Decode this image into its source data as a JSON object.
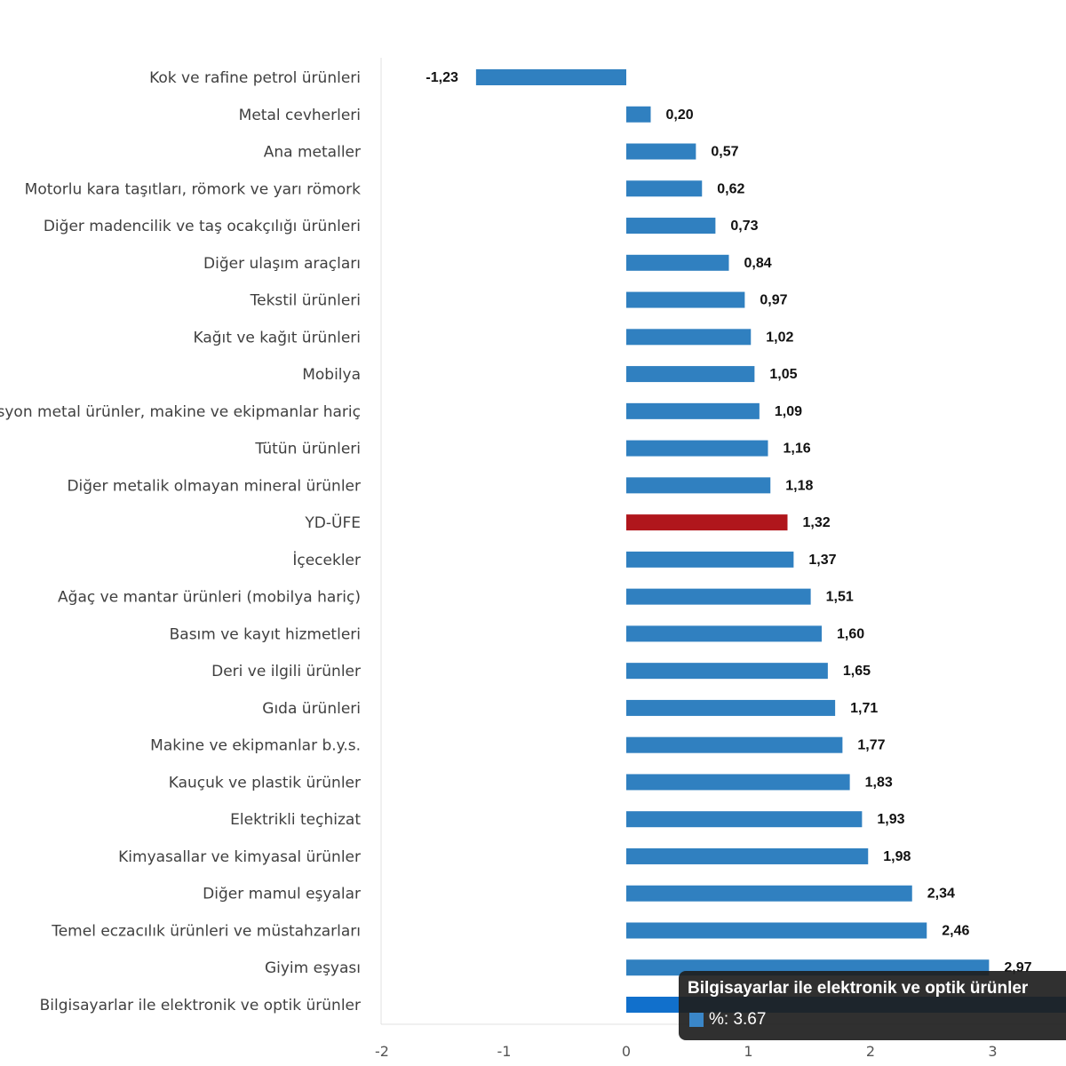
{
  "chart_data": {
    "type": "bar",
    "orientation": "horizontal",
    "categories": [
      "Kok ve rafine petrol ürünleri",
      "Metal cevherleri",
      "Ana metaller",
      "Motorlu kara taşıtları, römork ve yarı römork",
      "Diğer madencilik ve taş ocakçılığı ürünleri",
      "Diğer ulaşım araçları",
      "Tekstil ürünleri",
      "Kağıt ve kağıt ürünleri",
      "Mobilya",
      "Fabrikasyon metal ürünler, makine ve ekipmanlar hariç",
      "Tütün ürünleri",
      "Diğer metalik olmayan mineral ürünler",
      "YD-ÜFE",
      "İçecekler",
      "Ağaç ve mantar ürünleri (mobilya hariç)",
      "Basım ve kayıt hizmetleri",
      "Deri ve ilgili ürünler",
      "Gıda ürünleri",
      "Makine ve ekipmanlar b.y.s.",
      "Kauçuk ve plastik ürünler",
      "Elektrikli teçhizat",
      "Kimyasallar ve kimyasal ürünler",
      "Diğer mamul eşyalar",
      "Temel eczacılık ürünleri ve müstahzarları",
      "Giyim eşyası",
      "Bilgisayarlar ile elektronik ve optik ürünler"
    ],
    "values": [
      -1.23,
      0.2,
      0.57,
      0.62,
      0.73,
      0.84,
      0.97,
      1.02,
      1.05,
      1.09,
      1.16,
      1.18,
      1.32,
      1.37,
      1.51,
      1.6,
      1.65,
      1.71,
      1.77,
      1.83,
      1.93,
      1.98,
      2.34,
      2.46,
      2.97,
      3.67
    ],
    "value_labels": [
      "-1,23",
      "0,20",
      "0,57",
      "0,62",
      "0,73",
      "0,84",
      "0,97",
      "1,02",
      "1,05",
      "1,09",
      "1,16",
      "1,18",
      "1,32",
      "1,37",
      "1,51",
      "1,60",
      "1,65",
      "1,71",
      "1,77",
      "1,83",
      "1,93",
      "1,98",
      "2,34",
      "2,46",
      "2,97",
      ""
    ],
    "highlight_category": "YD-ÜFE",
    "hovered_category": "Bilgisayarlar ile elektronik ve optik ürünler",
    "xticks": [
      "-2",
      "-1",
      "0",
      "1",
      "2",
      "3"
    ],
    "xlim": [
      -2,
      3.5
    ],
    "grid": false,
    "colors": {
      "bar": "#3080c0",
      "highlight": "#b0161c",
      "hover": "#1170cc"
    }
  },
  "tooltip": {
    "title": "Bilgisayarlar ile elektronik ve optik ürünler",
    "value_text": "%: 3.67",
    "swatch_color": "#3a86c8"
  }
}
